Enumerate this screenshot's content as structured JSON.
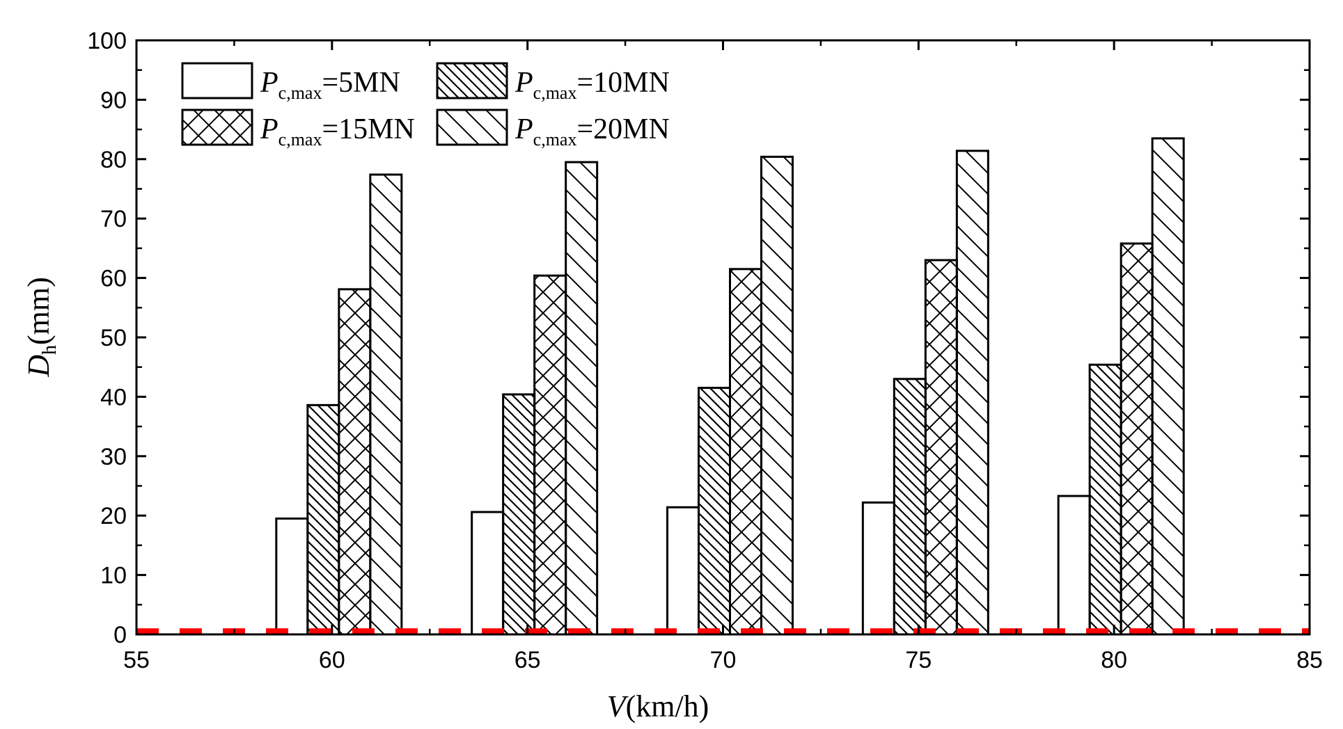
{
  "chart_data": {
    "type": "bar",
    "x_label": {
      "var": "V",
      "unit": "(km/h)"
    },
    "y_label": {
      "var": "D",
      "sub": "h",
      "unit": "(mm)"
    },
    "xlim": [
      55,
      85
    ],
    "ylim": [
      0,
      100
    ],
    "x_ticks": [
      55,
      60,
      65,
      70,
      75,
      80,
      85
    ],
    "y_ticks": [
      0,
      10,
      20,
      30,
      40,
      50,
      60,
      70,
      80,
      90,
      100
    ],
    "categories": [
      60,
      65,
      70,
      75,
      80
    ],
    "series": [
      {
        "name_main": "P",
        "name_sub": "c,max",
        "name_value": "=5MN",
        "pattern": "none",
        "values": [
          19.5,
          20.6,
          21.4,
          22.2,
          23.3
        ]
      },
      {
        "name_main": "P",
        "name_sub": "c,max",
        "name_value": "=10MN",
        "pattern": "dense-diagonal",
        "values": [
          38.6,
          40.4,
          41.5,
          43.0,
          45.4
        ]
      },
      {
        "name_main": "P",
        "name_sub": "c,max",
        "name_value": "=15MN",
        "pattern": "crosshatch",
        "values": [
          58.1,
          60.4,
          61.5,
          63.0,
          65.8
        ]
      },
      {
        "name_main": "P",
        "name_sub": "c,max",
        "name_value": "=20MN",
        "pattern": "sparse-diagonal",
        "values": [
          77.4,
          79.5,
          80.4,
          81.4,
          83.5
        ]
      }
    ],
    "reference_line": {
      "y": 0.5,
      "style": "dashed",
      "color": "#ff0000"
    },
    "legend_position": "top-left",
    "grid": false
  }
}
